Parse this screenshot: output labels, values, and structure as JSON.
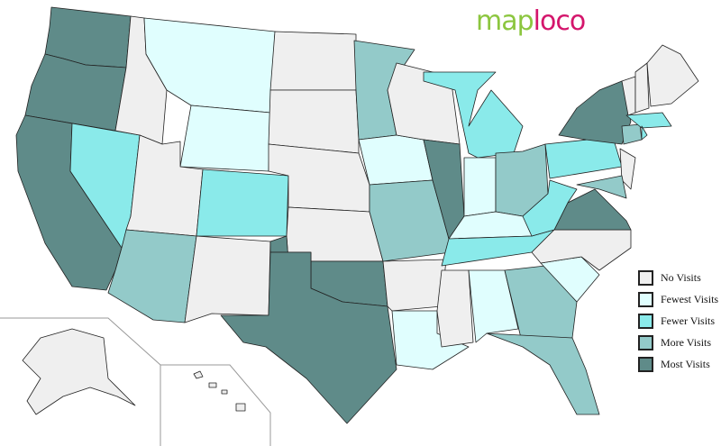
{
  "logo": {
    "part1": "map",
    "part2": "loco",
    "color1": "#8cc63f",
    "color2": "#d4166c"
  },
  "legend": [
    {
      "label": "No Visits",
      "color": "#efefef"
    },
    {
      "label": "Fewest Visits",
      "color": "#e0fefe"
    },
    {
      "label": "Fewer Visits",
      "color": "#8aeaea"
    },
    {
      "label": "More Visits",
      "color": "#93cac9"
    },
    {
      "label": "Most Visits",
      "color": "#5f8b89"
    }
  ],
  "state_levels": {
    "WA": 4,
    "OR": 4,
    "CA": 4,
    "TX": 4,
    "OK": 4,
    "IL": 4,
    "NY": 4,
    "VA": 4,
    "MN": 3,
    "AZ": 3,
    "MO": 3,
    "OH": 3,
    "GA": 3,
    "FL": 3,
    "CT": 3,
    "MD": 3,
    "NV": 2,
    "CO": 2,
    "MI": 2,
    "WV": 2,
    "PA": 2,
    "TN": 2,
    "MA": 2,
    "RI": 2,
    "MT": 1,
    "WY": 1,
    "IA": 1,
    "IN": 1,
    "KY": 1,
    "AL": 1,
    "LA": 1,
    "SC": 1,
    "ID": 0,
    "UT": 0,
    "NM": 0,
    "ND": 0,
    "SD": 0,
    "NE": 0,
    "KS": 0,
    "AR": 0,
    "MS": 0,
    "WI": 0,
    "NC": 0,
    "ME": 0,
    "NH": 0,
    "VT": 0,
    "NJ": 0,
    "AK": 0,
    "HI": 0
  }
}
